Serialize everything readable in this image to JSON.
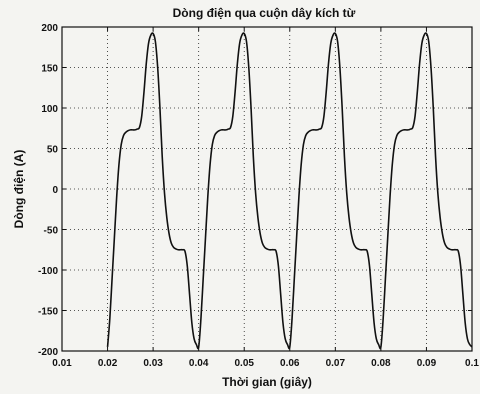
{
  "chart_data": {
    "type": "line",
    "title": "Dòng điện qua cuộn dây kích từ",
    "xlabel": "Thời gian (giây)",
    "ylabel": "Dòng điện (A)",
    "xlim": [
      0.01,
      0.1
    ],
    "ylim": [
      -200,
      200
    ],
    "x_ticks": [
      0.01,
      0.02,
      0.03,
      0.04,
      0.05,
      0.06,
      0.07,
      0.08,
      0.09,
      0.1
    ],
    "x_tick_labels": [
      "0.01",
      "0.02",
      "0.03",
      "0.04",
      "0.05",
      "0.06",
      "0.07",
      "0.08",
      "0.09",
      "0.1"
    ],
    "y_ticks": [
      200,
      150,
      100,
      50,
      0,
      -50,
      -100,
      -150,
      -200
    ],
    "y_tick_labels": [
      "200",
      "150",
      "100",
      "50",
      "0",
      "-50",
      "-100",
      "-150",
      "-200"
    ],
    "grid": true,
    "series": [
      {
        "x": [
          0.02,
          0.0205,
          0.021,
          0.0215,
          0.022,
          0.0225,
          0.023,
          0.0235,
          0.024,
          0.0245,
          0.025,
          0.0255,
          0.026,
          0.0265,
          0.027,
          0.0275,
          0.028,
          0.0285,
          0.029,
          0.0295,
          0.03,
          0.0305,
          0.031,
          0.0315,
          0.032,
          0.0325,
          0.033,
          0.0335,
          0.034,
          0.0345,
          0.035,
          0.0355,
          0.036,
          0.0365,
          0.037,
          0.0375,
          0.038,
          0.0385,
          0.039,
          0.0395,
          0.04,
          0.0405,
          0.041,
          0.0415,
          0.042,
          0.0425,
          0.043,
          0.0435,
          0.044,
          0.0445,
          0.045,
          0.0455,
          0.046,
          0.0465,
          0.047,
          0.0475,
          0.048,
          0.0485,
          0.049,
          0.0495,
          0.05,
          0.0505,
          0.051,
          0.0515,
          0.052,
          0.0525,
          0.053,
          0.0535,
          0.054,
          0.0545,
          0.055,
          0.0555,
          0.056,
          0.0565,
          0.057,
          0.0575,
          0.058,
          0.0585,
          0.059,
          0.0595,
          0.06,
          0.0605,
          0.061,
          0.0615,
          0.062,
          0.0625,
          0.063,
          0.0635,
          0.064,
          0.0645,
          0.065,
          0.0655,
          0.066,
          0.0665,
          0.067,
          0.0675,
          0.068,
          0.0685,
          0.069,
          0.0695,
          0.07,
          0.0705,
          0.071,
          0.0715,
          0.072,
          0.0725,
          0.073,
          0.0735,
          0.074,
          0.0745,
          0.075,
          0.0755,
          0.076,
          0.0765,
          0.077,
          0.0775,
          0.078,
          0.0785,
          0.079,
          0.0795,
          0.08,
          0.0805,
          0.081,
          0.0815,
          0.082,
          0.0825,
          0.083,
          0.0835,
          0.084,
          0.0845,
          0.085,
          0.0855,
          0.086,
          0.0865,
          0.087,
          0.0875,
          0.088,
          0.0885,
          0.089,
          0.0895,
          0.09,
          0.0905,
          0.091,
          0.0915,
          0.092,
          0.0925,
          0.093,
          0.0935,
          0.094,
          0.0945,
          0.095,
          0.0955,
          0.096,
          0.0965,
          0.097,
          0.0975,
          0.098,
          0.0985,
          0.099,
          0.0995,
          0.1
        ],
        "y": [
          -195,
          -160,
          -110,
          -60,
          -10,
          30,
          55,
          66,
          70,
          72,
          73,
          73,
          73,
          74,
          76,
          90,
          120,
          155,
          180,
          190,
          192,
          182,
          150,
          100,
          40,
          -5,
          -35,
          -55,
          -67,
          -72,
          -74,
          -75,
          -75,
          -75,
          -77,
          -95,
          -130,
          -165,
          -185,
          -192,
          -195,
          -160,
          -110,
          -60,
          -10,
          30,
          55,
          66,
          70,
          72,
          73,
          73,
          73,
          74,
          76,
          90,
          120,
          155,
          180,
          190,
          192,
          182,
          150,
          100,
          40,
          -5,
          -35,
          -55,
          -67,
          -72,
          -74,
          -75,
          -75,
          -75,
          -77,
          -95,
          -130,
          -165,
          -185,
          -192,
          -195,
          -160,
          -110,
          -60,
          -10,
          30,
          55,
          66,
          70,
          72,
          73,
          73,
          73,
          74,
          76,
          90,
          120,
          155,
          180,
          190,
          192,
          182,
          150,
          100,
          40,
          -5,
          -35,
          -55,
          -67,
          -72,
          -74,
          -75,
          -75,
          -75,
          -77,
          -95,
          -130,
          -165,
          -185,
          -192,
          -195,
          -160,
          -110,
          -60,
          -10,
          30,
          55,
          66,
          70,
          72,
          73,
          73,
          73,
          74,
          76,
          90,
          120,
          155,
          180,
          190,
          192,
          182,
          150,
          100,
          40,
          -5,
          -35,
          -55,
          -67,
          -72,
          -74,
          -75,
          -75,
          -75,
          -77,
          -95,
          -130,
          -165,
          -185,
          -192,
          -195
        ]
      }
    ]
  }
}
